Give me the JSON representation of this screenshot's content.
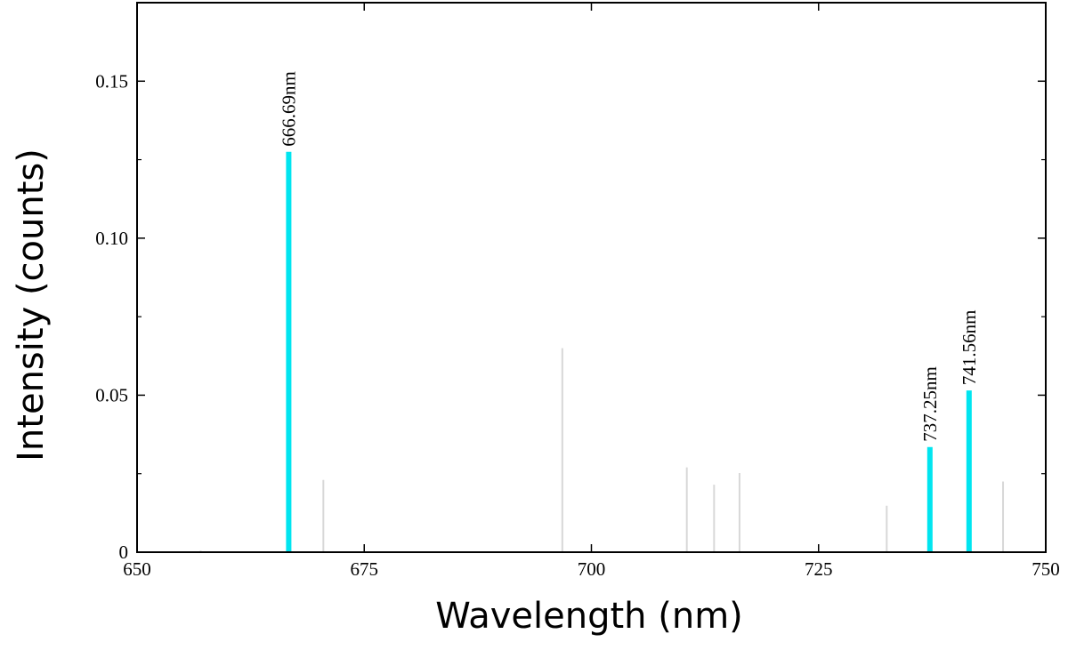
{
  "chart_data": {
    "type": "bar",
    "title": "",
    "xlabel": "Wavelength (nm)",
    "ylabel": "Intensity (counts)",
    "xlim": [
      650,
      750
    ],
    "ylim": [
      0,
      0.175
    ],
    "xticks": [
      650,
      675,
      700,
      725,
      750
    ],
    "yticks": [
      0,
      0.05,
      0.1,
      0.15
    ],
    "xtick_labels": [
      "650",
      "675",
      "700",
      "725",
      "750"
    ],
    "ytick_labels": [
      "0",
      "0.05",
      "0.10",
      "0.15"
    ],
    "grid": false,
    "series": [
      {
        "color": "#00e5f0",
        "points": [
          {
            "x": 666.69,
            "y": 0.1275,
            "label": "666.69nm"
          },
          {
            "x": 737.25,
            "y": 0.0335,
            "label": "737.25nm"
          },
          {
            "x": 741.56,
            "y": 0.0515,
            "label": "741.56nm"
          }
        ]
      },
      {
        "color": "#d8d8d8",
        "points": [
          {
            "x": 657.0,
            "y": 0.0005
          },
          {
            "x": 670.5,
            "y": 0.023
          },
          {
            "x": 696.8,
            "y": 0.065
          },
          {
            "x": 710.5,
            "y": 0.027
          },
          {
            "x": 713.5,
            "y": 0.0215
          },
          {
            "x": 716.3,
            "y": 0.0252
          },
          {
            "x": 732.5,
            "y": 0.0148
          },
          {
            "x": 745.3,
            "y": 0.0225
          }
        ]
      }
    ]
  }
}
